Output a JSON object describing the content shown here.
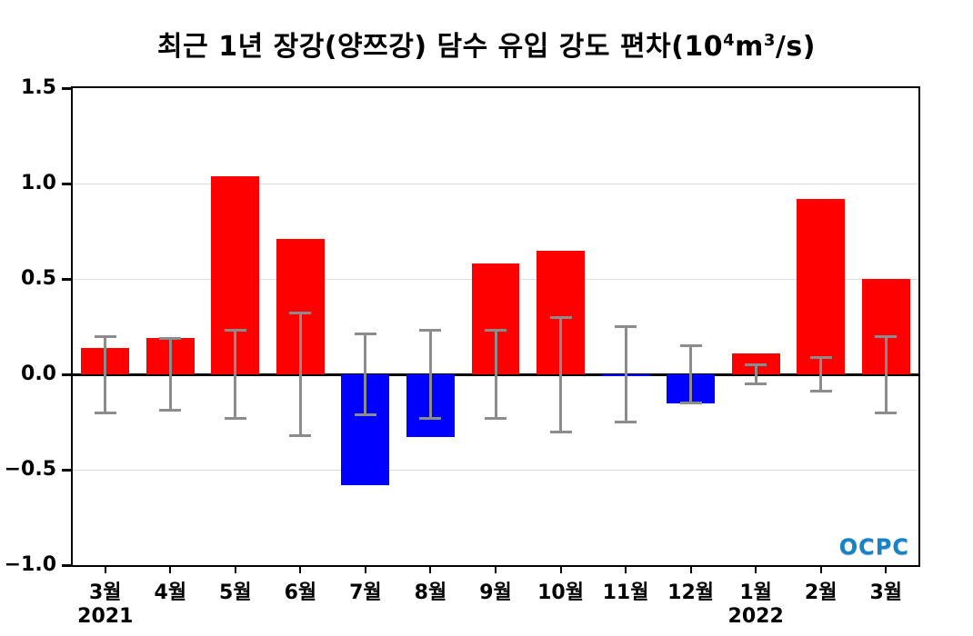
{
  "title": {
    "full": "최근 1년 장강(양쯔강) 담수 유입 강도 편차(10⁴m³/s)",
    "main": "최근 1년 장강(양쯔강) 담수 유입 강도 편차(10",
    "sup1": "4",
    "mid": "m",
    "sup2": "3",
    "end": "/s)"
  },
  "chart_data": {
    "type": "bar",
    "title": "최근 1년 장강(양쯔강) 담수 유입 강도 편차(10⁴m³/s)",
    "categories": [
      "3월",
      "4월",
      "5월",
      "6월",
      "7월",
      "8월",
      "9월",
      "10월",
      "11월",
      "12월",
      "1월",
      "2월",
      "3월"
    ],
    "year_labels": [
      "2021",
      "",
      "",
      "",
      "",
      "",
      "",
      "",
      "",
      "",
      "2022",
      "",
      ""
    ],
    "values": [
      0.14,
      0.19,
      1.04,
      0.71,
      -0.58,
      -0.33,
      0.58,
      0.65,
      -0.01,
      -0.15,
      0.11,
      0.92,
      0.5
    ],
    "errors": [
      0.2,
      0.19,
      0.23,
      0.32,
      0.21,
      0.23,
      0.23,
      0.3,
      0.25,
      0.15,
      0.05,
      0.09,
      0.2
    ],
    "ylim": [
      -1.0,
      1.5
    ],
    "yticks": [
      -1.0,
      -0.5,
      0.0,
      0.5,
      1.0,
      1.5
    ],
    "xlabel": "",
    "ylabel": "",
    "grid": "horizontal-major",
    "legend": "none",
    "colors": {
      "positive": "#ff0000",
      "negative": "#0000ff",
      "error_bar": "#8c8c8c",
      "gridline": "#d7dee6",
      "zero_line": "#000000",
      "axis": "#000000"
    }
  },
  "logo": {
    "text": "OCPC",
    "color": "#1583c6"
  }
}
